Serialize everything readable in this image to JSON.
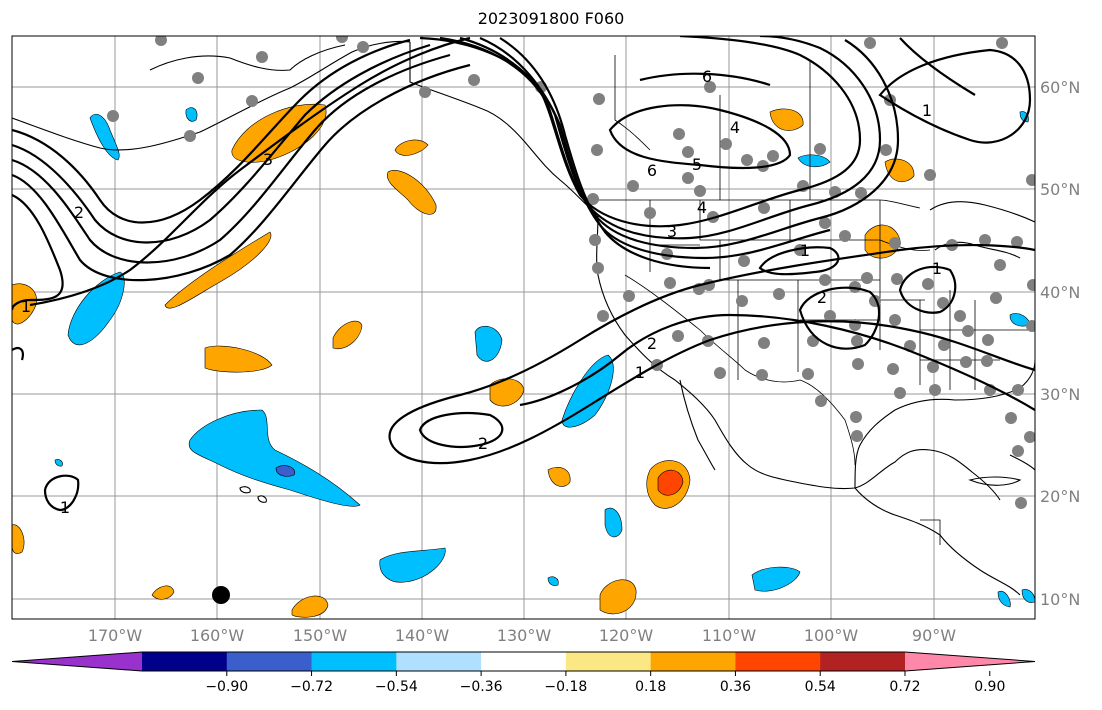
{
  "title": "2023091800 F060",
  "lon_ticks": [
    "170°W",
    "160°W",
    "150°W",
    "140°W",
    "130°W",
    "120°W",
    "110°W",
    "100°W",
    "90°W"
  ],
  "lat_ticks": [
    "60°N",
    "50°N",
    "40°N",
    "30°N",
    "20°N",
    "10°N"
  ],
  "colorbar": {
    "colors": [
      "#9932cc",
      "#00008b",
      "#3a5fcd",
      "#00bfff",
      "#b0e0ff",
      "#ffffff",
      "#fce785",
      "#ffa500",
      "#ff4500",
      "#b22222",
      "#ff88aa"
    ],
    "tick_labels": [
      "−0.90",
      "−0.72",
      "−0.54",
      "−0.36",
      "−0.18",
      "0.18",
      "0.36",
      "0.54",
      "0.72",
      "0.90"
    ]
  },
  "contour_labels": [
    "6",
    "4",
    "5",
    "6",
    "4",
    "3",
    "3",
    "2",
    "1",
    "2",
    "1",
    "1",
    "1",
    "2",
    "2",
    "1",
    "1"
  ],
  "map": {
    "projection": "PlateCarree",
    "extent": [
      -180,
      -80,
      8,
      65
    ],
    "station_color": "#808080",
    "marker_color": "#000000"
  }
}
